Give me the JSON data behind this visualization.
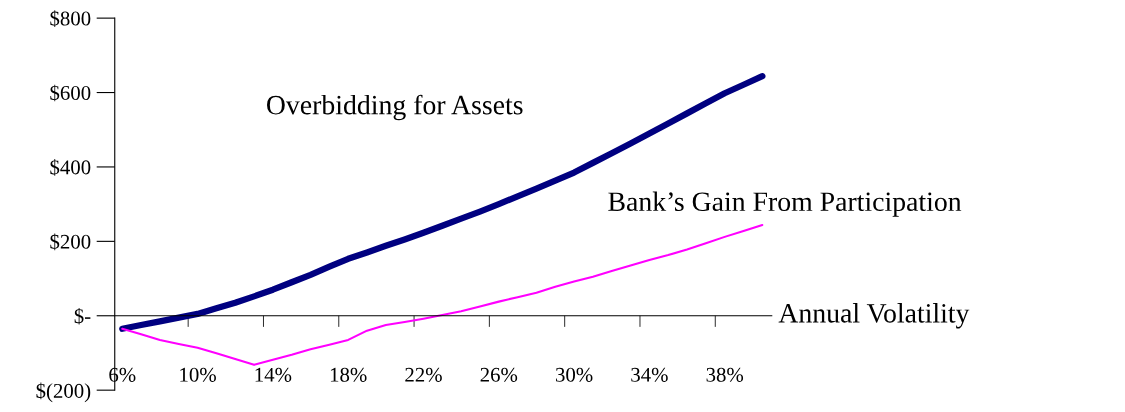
{
  "chart_data": {
    "type": "line",
    "xlabel": "Annual Volatility",
    "categories": [
      "6%",
      null,
      null,
      null,
      "10%",
      null,
      null,
      null,
      "14%",
      null,
      null,
      null,
      "18%",
      null,
      null,
      null,
      "22%",
      null,
      null,
      null,
      "26%",
      null,
      null,
      null,
      "30%",
      null,
      null,
      null,
      "34%",
      null,
      null,
      null,
      "38%",
      null,
      null
    ],
    "series": [
      {
        "name": "Overbidding for Assets",
        "color": "#000080",
        "values": [
          -35,
          -25,
          -15,
          -5,
          5,
          20,
          35,
          52,
          70,
          90,
          110,
          132,
          153,
          170,
          188,
          205,
          223,
          242,
          261,
          280,
          300,
          321,
          342,
          363,
          385,
          411,
          437,
          463,
          490,
          517,
          544,
          571,
          598,
          621,
          644
        ]
      },
      {
        "name": "Bank’s Gain From Participation",
        "color": "#ff00ff",
        "values": [
          -35,
          -50,
          -65,
          -76,
          -86,
          -101,
          -116,
          -132,
          -118,
          -105,
          -90,
          -78,
          -65,
          -40,
          -25,
          -17,
          -8,
          2,
          12,
          25,
          38,
          50,
          62,
          78,
          92,
          105,
          120,
          135,
          150,
          163,
          178,
          195,
          212,
          228,
          244
        ]
      }
    ],
    "ylim": [
      -200,
      800
    ],
    "yticks": [
      {
        "value": -200,
        "label": "$(200)"
      },
      {
        "value": 0,
        "label": "$-"
      },
      {
        "value": 200,
        "label": "$200"
      },
      {
        "value": 400,
        "label": "$400"
      },
      {
        "value": 600,
        "label": "$600"
      },
      {
        "value": 800,
        "label": "$800"
      }
    ],
    "grid": false,
    "legend": false,
    "marker": "none",
    "line_style": "solid"
  }
}
